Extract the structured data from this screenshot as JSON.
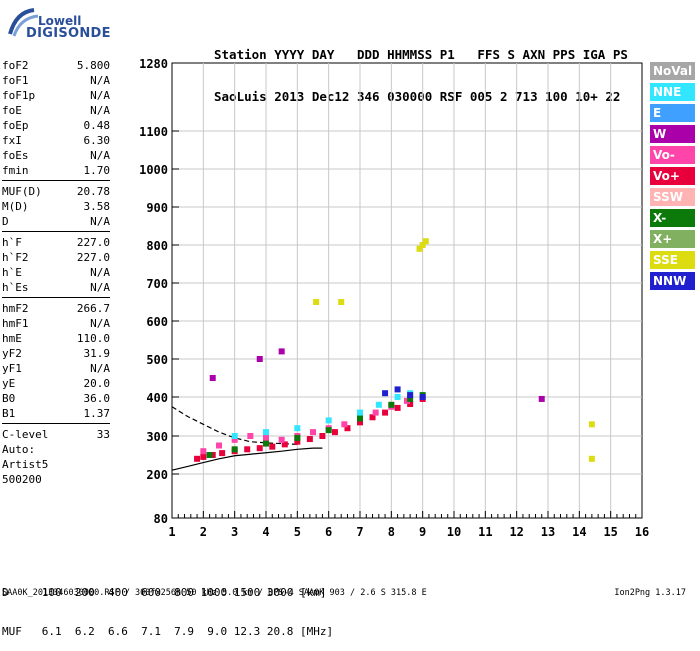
{
  "logo": {
    "line1": "Lowell",
    "line2": "DIGISONDE"
  },
  "header": {
    "line1": "Station YYYY DAY   DDD HHMMSS P1   FFS S AXN PPS IGA PS",
    "line2": "SaoLuis 2013 Dec12 346 030000 RSF 005 2 713 100 10+ 22"
  },
  "params": [
    {
      "k": "foF2",
      "v": "5.800"
    },
    {
      "k": "foF1",
      "v": "N/A"
    },
    {
      "k": "foF1p",
      "v": "N/A"
    },
    {
      "k": "foE",
      "v": "N/A"
    },
    {
      "k": "foEp",
      "v": "0.48"
    },
    {
      "k": "fxI",
      "v": "6.30"
    },
    {
      "k": "foEs",
      "v": "N/A"
    },
    {
      "k": "fmin",
      "v": "1.70"
    },
    {
      "k": "MUF(D)",
      "v": "20.78"
    },
    {
      "k": "M(D)",
      "v": "3.58"
    },
    {
      "k": "D",
      "v": "N/A"
    },
    {
      "k": "h`F",
      "v": "227.0"
    },
    {
      "k": "h`F2",
      "v": "227.0"
    },
    {
      "k": "h`E",
      "v": "N/A"
    },
    {
      "k": "h`Es",
      "v": "N/A"
    },
    {
      "k": "hmF2",
      "v": "266.7"
    },
    {
      "k": "hmF1",
      "v": "N/A"
    },
    {
      "k": "hmE",
      "v": "110.0"
    },
    {
      "k": "yF2",
      "v": "31.9"
    },
    {
      "k": "yF1",
      "v": "N/A"
    },
    {
      "k": "yE",
      "v": "20.0"
    },
    {
      "k": "B0",
      "v": "36.0"
    },
    {
      "k": "B1",
      "v": "1.37"
    },
    {
      "k": "C-level",
      "v": "33"
    }
  ],
  "auto": {
    "l1": "Auto:",
    "l2": "Artist5",
    "l3": "500200"
  },
  "legend": [
    {
      "label": "NoVal",
      "color": "#a6a6a6"
    },
    {
      "label": "NNE",
      "color": "#33e6ff"
    },
    {
      "label": "E",
      "color": "#3fa0ff"
    },
    {
      "label": "W",
      "color": "#aa00aa"
    },
    {
      "label": "Vo-",
      "color": "#ff44aa"
    },
    {
      "label": "Vo+",
      "color": "#e8003c"
    },
    {
      "label": "SSW",
      "color": "#ffb3b3"
    },
    {
      "label": "X-",
      "color": "#0b7a0b"
    },
    {
      "label": "X+",
      "color": "#80b060"
    },
    {
      "label": "SSE",
      "color": "#dcdc10"
    },
    {
      "label": "NNW",
      "color": "#2020d0"
    }
  ],
  "bottom": {
    "line1": "D     100  200  400  600  800 1000 1500 3000 [km]",
    "line2": "MUF   6.1  6.2  6.6  7.1  7.9  9.0 12.3 20.8 [MHz]"
  },
  "footer": {
    "left": "SAA0K_2013346030000.RSF / 300fx256h 50 kHz 5.0 km / DPS-4 SAA0K 903 / 2.6 S 315.8 E",
    "right": "Ion2Png 1.3.17"
  },
  "chart_data": {
    "type": "scatter",
    "title": "",
    "xlabel": "",
    "ylabel": "",
    "x_ticks": [
      1,
      2,
      3,
      4,
      5,
      6,
      7,
      8,
      9,
      10,
      11,
      12,
      13,
      14,
      15,
      16
    ],
    "y_ticks": [
      80,
      200,
      300,
      400,
      500,
      600,
      700,
      800,
      900,
      1000,
      1100,
      1280
    ],
    "xlim": [
      1,
      16
    ],
    "ylim": [
      80,
      1280
    ],
    "y_scale": "nonlinear (ionogram virtual height)",
    "grid": true,
    "legend_position": "right",
    "series": [
      {
        "name": "Vo+",
        "points": [
          [
            1.8,
            240
          ],
          [
            2.0,
            245
          ],
          [
            2.3,
            250
          ],
          [
            2.6,
            255
          ],
          [
            3.0,
            260
          ],
          [
            3.4,
            265
          ],
          [
            3.8,
            268
          ],
          [
            4.2,
            272
          ],
          [
            4.6,
            278
          ],
          [
            5.0,
            285
          ],
          [
            5.4,
            292
          ],
          [
            5.8,
            300
          ],
          [
            6.2,
            310
          ],
          [
            6.6,
            320
          ],
          [
            7.0,
            335
          ],
          [
            7.4,
            348
          ],
          [
            7.8,
            360
          ],
          [
            8.2,
            372
          ],
          [
            8.6,
            382
          ],
          [
            9.0,
            395
          ]
        ]
      },
      {
        "name": "Vo-",
        "points": [
          [
            2.0,
            260
          ],
          [
            2.5,
            275
          ],
          [
            3.0,
            290
          ],
          [
            3.5,
            300
          ],
          [
            4.0,
            295
          ],
          [
            4.5,
            290
          ],
          [
            5.0,
            300
          ],
          [
            5.5,
            310
          ],
          [
            6.0,
            320
          ],
          [
            6.5,
            330
          ],
          [
            7.0,
            345
          ],
          [
            7.5,
            360
          ],
          [
            8.0,
            375
          ],
          [
            8.5,
            390
          ]
        ]
      },
      {
        "name": "X-",
        "points": [
          [
            2.2,
            250
          ],
          [
            3.0,
            265
          ],
          [
            4.0,
            280
          ],
          [
            5.0,
            295
          ],
          [
            6.0,
            315
          ],
          [
            7.0,
            345
          ],
          [
            8.0,
            380
          ],
          [
            8.6,
            395
          ],
          [
            9.0,
            405
          ]
        ]
      },
      {
        "name": "NNE",
        "points": [
          [
            3.0,
            300
          ],
          [
            4.0,
            310
          ],
          [
            5.0,
            320
          ],
          [
            6.0,
            340
          ],
          [
            7.0,
            360
          ],
          [
            7.6,
            380
          ],
          [
            8.2,
            400
          ],
          [
            8.6,
            410
          ]
        ]
      },
      {
        "name": "SSE",
        "points": [
          [
            5.6,
            650
          ],
          [
            6.4,
            650
          ],
          [
            9.0,
            800
          ],
          [
            9.1,
            810
          ],
          [
            8.9,
            790
          ],
          [
            14.4,
            330
          ],
          [
            14.4,
            240
          ]
        ]
      },
      {
        "name": "NNW",
        "points": [
          [
            7.8,
            410
          ],
          [
            8.2,
            420
          ],
          [
            8.6,
            405
          ],
          [
            9.0,
            400
          ]
        ]
      },
      {
        "name": "W",
        "points": [
          [
            3.8,
            500
          ],
          [
            4.5,
            520
          ],
          [
            2.3,
            450
          ],
          [
            12.8,
            395
          ]
        ]
      }
    ],
    "trace_lines": [
      {
        "name": "O-trace",
        "points": [
          [
            1.0,
            375
          ],
          [
            1.5,
            350
          ],
          [
            2.0,
            330
          ],
          [
            2.5,
            310
          ],
          [
            3.0,
            295
          ],
          [
            3.5,
            285
          ],
          [
            4.0,
            282
          ],
          [
            4.5,
            280
          ],
          [
            5.0,
            278
          ]
        ]
      },
      {
        "name": "X-trace",
        "points": [
          [
            1.0,
            210
          ],
          [
            1.5,
            220
          ],
          [
            2.0,
            230
          ],
          [
            2.5,
            240
          ],
          [
            3.0,
            248
          ],
          [
            3.5,
            252
          ],
          [
            4.0,
            256
          ],
          [
            4.5,
            260
          ],
          [
            5.0,
            265
          ],
          [
            5.5,
            268
          ],
          [
            5.8,
            268
          ]
        ]
      }
    ]
  }
}
